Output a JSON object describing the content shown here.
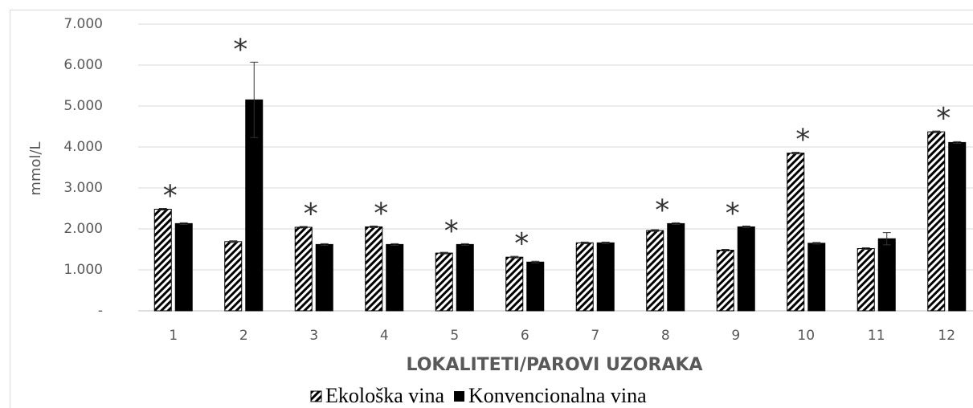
{
  "chart_data": {
    "type": "bar",
    "y_label": "mmol/L",
    "x_label": "LOKALITETI/PAROVI UZORAKA",
    "categories": [
      "1",
      "2",
      "3",
      "4",
      "5",
      "6",
      "7",
      "8",
      "9",
      "10",
      "11",
      "12"
    ],
    "series": [
      {
        "name": "Ekološka vina",
        "color": "#000000",
        "pattern": "hatch",
        "values": [
          2480,
          1690,
          2040,
          2050,
          1410,
          1310,
          1660,
          1960,
          1480,
          3850,
          1520,
          4370
        ],
        "errors": [
          20,
          20,
          20,
          20,
          20,
          20,
          20,
          20,
          20,
          20,
          20,
          20
        ]
      },
      {
        "name": "Konvencionalna vina",
        "color": "#000000",
        "pattern": "solid",
        "values": [
          2130,
          5150,
          1620,
          1620,
          1620,
          1190,
          1660,
          2130,
          2050,
          1650,
          1760,
          4110
        ],
        "errors": [
          20,
          920,
          20,
          20,
          20,
          20,
          20,
          20,
          20,
          20,
          150,
          20
        ]
      }
    ],
    "annotations": [
      {
        "category": 0,
        "text": "*"
      },
      {
        "category": 1,
        "text": "*"
      },
      {
        "category": 2,
        "text": "*"
      },
      {
        "category": 3,
        "text": "*"
      },
      {
        "category": 4,
        "text": "*"
      },
      {
        "category": 5,
        "text": "*"
      },
      {
        "category": 7,
        "text": "*"
      },
      {
        "category": 8,
        "text": "*"
      },
      {
        "category": 9,
        "text": "*"
      },
      {
        "category": 11,
        "text": "*"
      }
    ],
    "ylim": [
      0,
      7000
    ],
    "yticks": [
      {
        "value": 0,
        "label": "-"
      },
      {
        "value": 1000,
        "label": "1.000"
      },
      {
        "value": 2000,
        "label": "2.000"
      },
      {
        "value": 3000,
        "label": "3.000"
      },
      {
        "value": 4000,
        "label": "4.000"
      },
      {
        "value": 5000,
        "label": "5.000"
      },
      {
        "value": 6000,
        "label": "6.000"
      },
      {
        "value": 7000,
        "label": "7.000"
      }
    ],
    "grid": true,
    "legend": "bottom"
  }
}
